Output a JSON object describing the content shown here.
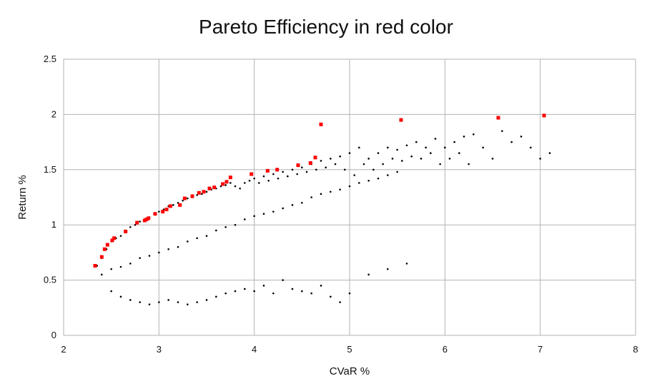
{
  "chart_data": {
    "type": "scatter",
    "title": "Pareto Efficiency in red color",
    "xlabel": "CVaR %",
    "ylabel": "Return %",
    "xlim": [
      2,
      8
    ],
    "ylim": [
      0,
      2.5
    ],
    "x_ticks": [
      "2",
      "3",
      "4",
      "5",
      "6",
      "7",
      "8"
    ],
    "y_ticks": [
      "0",
      "0.5",
      "1",
      "1.5",
      "2",
      "2.5"
    ],
    "grid": true,
    "series": [
      {
        "color": "#000000",
        "x": [
          2.35,
          2.4,
          2.45,
          2.5,
          2.55,
          2.6,
          2.65,
          2.7,
          2.75,
          2.8,
          2.85,
          2.9,
          2.95,
          3.0,
          3.05,
          3.1,
          3.15,
          3.2,
          3.25,
          3.3,
          3.35,
          3.4,
          3.45,
          3.5,
          3.55,
          3.6,
          3.65,
          3.7,
          3.75,
          3.8,
          3.85,
          3.9,
          3.95,
          4.0,
          4.05,
          4.1,
          4.15,
          4.2,
          4.25,
          4.3,
          4.35,
          4.4,
          4.45,
          4.5,
          4.55,
          4.6,
          4.65,
          4.7,
          4.75,
          4.8,
          4.85,
          4.9,
          4.95,
          5.0,
          5.05,
          5.1,
          5.15,
          5.2,
          5.25,
          5.3,
          5.35,
          5.4,
          5.45,
          5.5,
          5.55,
          5.6,
          5.65,
          5.7,
          5.75,
          5.8,
          5.85,
          5.9,
          5.95,
          6.0,
          6.05,
          6.1,
          6.15,
          6.2,
          6.25,
          6.3,
          6.4,
          6.5,
          6.6,
          6.7,
          6.8,
          6.9,
          7.0,
          7.1,
          2.4,
          2.5,
          2.6,
          2.7,
          2.8,
          2.9,
          3.0,
          3.1,
          3.2,
          3.3,
          3.4,
          3.5,
          3.6,
          3.7,
          3.8,
          3.9,
          4.0,
          4.1,
          4.2,
          4.3,
          4.4,
          4.5,
          4.6,
          4.7,
          4.8,
          4.9,
          5.0,
          5.1,
          5.2,
          5.3,
          5.4,
          5.5,
          2.5,
          2.6,
          2.7,
          2.8,
          2.9,
          3.0,
          3.1,
          3.2,
          3.3,
          3.4,
          3.5,
          3.6,
          3.7,
          3.8,
          3.9,
          4.0,
          4.1,
          4.2,
          4.3,
          4.4,
          4.5,
          4.6,
          4.7,
          4.8,
          4.9,
          5.0,
          5.2,
          5.4,
          5.6
        ],
        "y": [
          0.63,
          0.7,
          0.78,
          0.85,
          0.88,
          0.9,
          0.95,
          0.98,
          1.0,
          1.03,
          1.05,
          1.07,
          1.1,
          1.12,
          1.14,
          1.17,
          1.18,
          1.2,
          1.22,
          1.24,
          1.25,
          1.27,
          1.28,
          1.3,
          1.32,
          1.33,
          1.35,
          1.36,
          1.38,
          1.35,
          1.33,
          1.38,
          1.4,
          1.42,
          1.38,
          1.44,
          1.4,
          1.46,
          1.42,
          1.48,
          1.44,
          1.5,
          1.46,
          1.52,
          1.48,
          1.55,
          1.5,
          1.58,
          1.52,
          1.6,
          1.55,
          1.62,
          1.5,
          1.65,
          1.45,
          1.7,
          1.55,
          1.6,
          1.5,
          1.65,
          1.55,
          1.7,
          1.6,
          1.68,
          1.58,
          1.72,
          1.62,
          1.75,
          1.6,
          1.7,
          1.65,
          1.78,
          1.55,
          1.7,
          1.6,
          1.75,
          1.65,
          1.8,
          1.55,
          1.82,
          1.7,
          1.6,
          1.85,
          1.75,
          1.8,
          1.7,
          1.6,
          1.65,
          0.55,
          0.6,
          0.62,
          0.65,
          0.7,
          0.72,
          0.75,
          0.78,
          0.8,
          0.85,
          0.88,
          0.9,
          0.95,
          0.98,
          1.0,
          1.05,
          1.08,
          1.1,
          1.12,
          1.15,
          1.18,
          1.2,
          1.25,
          1.28,
          1.3,
          1.32,
          1.35,
          1.38,
          1.4,
          1.42,
          1.45,
          1.48,
          0.4,
          0.35,
          0.32,
          0.3,
          0.28,
          0.3,
          0.32,
          0.3,
          0.28,
          0.3,
          0.32,
          0.35,
          0.38,
          0.4,
          0.42,
          0.4,
          0.45,
          0.38,
          0.5,
          0.42,
          0.4,
          0.38,
          0.45,
          0.35,
          0.3,
          0.38,
          0.55,
          0.6,
          0.65
        ]
      },
      {
        "color": "#ff0000",
        "x": [
          2.33,
          2.4,
          2.43,
          2.46,
          2.51,
          2.53,
          2.65,
          2.77,
          2.85,
          2.87,
          2.89,
          2.96,
          3.04,
          3.08,
          3.12,
          3.22,
          3.27,
          3.35,
          3.42,
          3.47,
          3.53,
          3.58,
          3.67,
          3.71,
          3.75,
          3.97,
          4.14,
          4.24,
          4.46,
          4.59,
          4.64,
          4.7,
          5.54,
          6.56,
          7.04
        ],
        "y": [
          0.63,
          0.71,
          0.78,
          0.82,
          0.86,
          0.88,
          0.94,
          1.02,
          1.04,
          1.05,
          1.06,
          1.1,
          1.12,
          1.14,
          1.17,
          1.18,
          1.24,
          1.26,
          1.29,
          1.3,
          1.33,
          1.34,
          1.37,
          1.39,
          1.43,
          1.46,
          1.49,
          1.5,
          1.54,
          1.56,
          1.61,
          1.91,
          1.95,
          1.97,
          1.99
        ]
      }
    ]
  }
}
